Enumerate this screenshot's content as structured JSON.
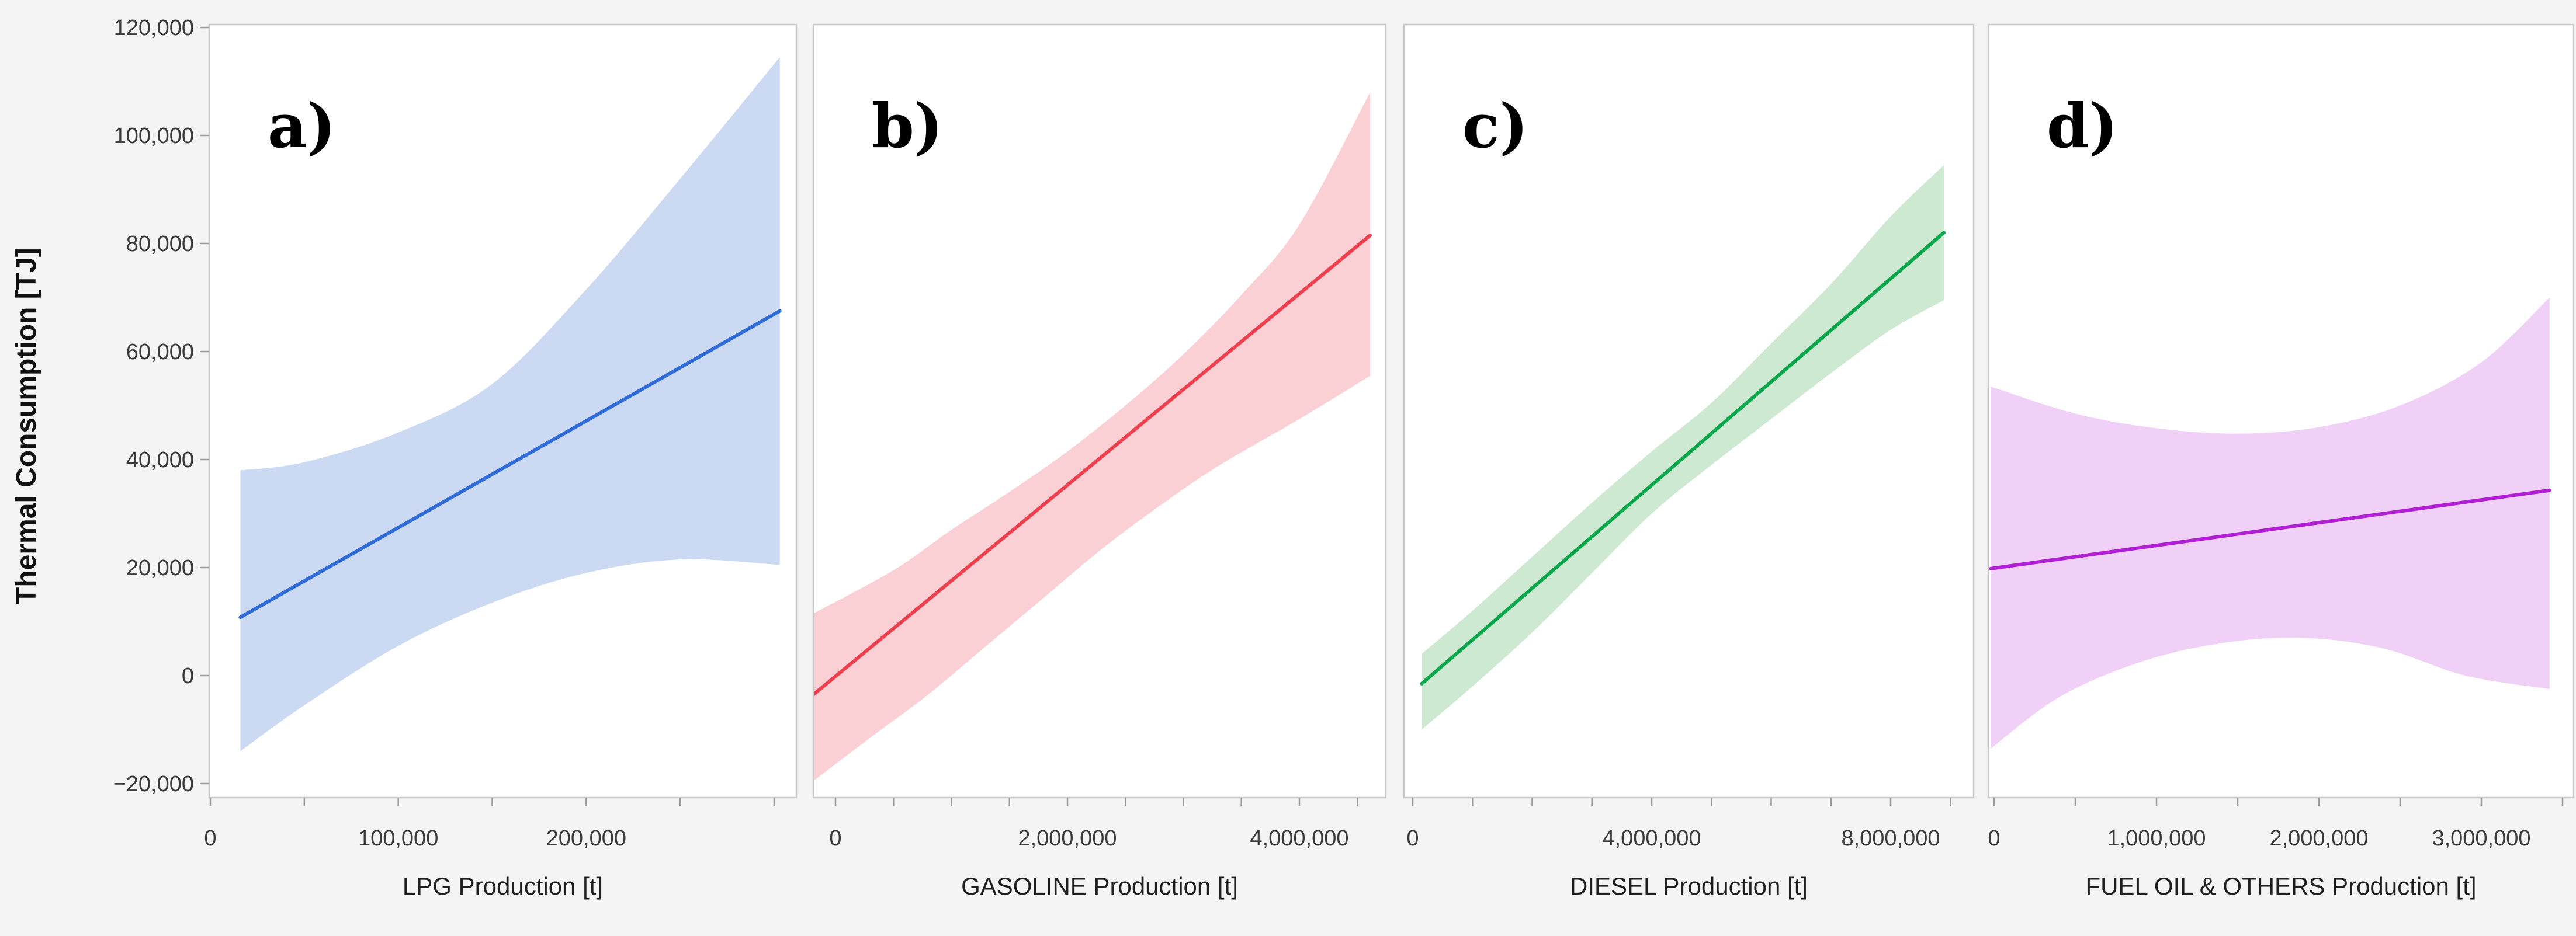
{
  "figure": {
    "y_axis_title": "Thermal Consumption [TJ]",
    "background_color": "#f4f4f4",
    "panel_fill": "#ffffff",
    "frame_color": "#c8c8c8",
    "tick_color": "#9b9b9b",
    "tick_label_color": "#3a3a3a",
    "axis_title_color": "#1f1f1f"
  },
  "y_axis": {
    "title": "Thermal Consumption [TJ]",
    "ticks": [
      {
        "value": 120000,
        "label": "120,000"
      },
      {
        "value": 100000,
        "label": "100,000"
      },
      {
        "value": 80000,
        "label": "80,000"
      },
      {
        "value": 60000,
        "label": "60,000"
      },
      {
        "value": 40000,
        "label": "40,000"
      },
      {
        "value": 20000,
        "label": "20,000"
      },
      {
        "value": 0,
        "label": "0"
      },
      {
        "value": -20000,
        "label": "−20,000"
      }
    ],
    "visible_range": [
      -22600,
      120600
    ],
    "grid": false
  },
  "chart_data": [
    {
      "type": "line",
      "id": "a",
      "letter": "a)",
      "x_title": "LPG Production [t]",
      "line_color": "#2e6bd8",
      "band_color": "#ccd9f3",
      "x_domain": [
        -600,
        312000
      ],
      "x_minor_step": 50000,
      "x_max_tick": 300000,
      "x_tick_labels": [
        {
          "value": 0,
          "label": "0"
        },
        {
          "value": 100000,
          "label": "100,000"
        },
        {
          "value": 200000,
          "label": "200,000"
        }
      ],
      "line": [
        [
          16000,
          10800
        ],
        [
          303000,
          67500
        ]
      ],
      "band_upper": [
        [
          16000,
          38000
        ],
        [
          50000,
          39500
        ],
        [
          100000,
          45000
        ],
        [
          150000,
          54000
        ],
        [
          200000,
          71500
        ],
        [
          250000,
          92000
        ],
        [
          303000,
          114500
        ]
      ],
      "band_lower": [
        [
          16000,
          -14000
        ],
        [
          50000,
          -5500
        ],
        [
          100000,
          5500
        ],
        [
          150000,
          13500
        ],
        [
          200000,
          19000
        ],
        [
          250000,
          21500
        ],
        [
          303000,
          20500
        ]
      ]
    },
    {
      "type": "line",
      "id": "b",
      "letter": "b)",
      "x_title": "GASOLINE Production [t]",
      "line_color": "#ee3f4f",
      "band_color": "#fbd0d4",
      "x_domain": [
        -190000,
        4745000
      ],
      "x_minor_step": 500000,
      "x_max_tick": 4500000,
      "x_tick_labels": [
        {
          "value": 0,
          "label": "0"
        },
        {
          "value": 2000000,
          "label": "2,000,000"
        },
        {
          "value": 4000000,
          "label": "4,000,000"
        }
      ],
      "line": [
        [
          -190000,
          -3500
        ],
        [
          4610000,
          81500
        ]
      ],
      "band_upper": [
        [
          -190000,
          11500
        ],
        [
          500000,
          19500
        ],
        [
          1000000,
          27000
        ],
        [
          1500000,
          34000
        ],
        [
          2000000,
          41500
        ],
        [
          2500000,
          50000
        ],
        [
          3000000,
          59500
        ],
        [
          3500000,
          70500
        ],
        [
          4000000,
          83500
        ],
        [
          4610000,
          108000
        ]
      ],
      "band_lower": [
        [
          -190000,
          -19500
        ],
        [
          300000,
          -11500
        ],
        [
          800000,
          -3500
        ],
        [
          1300000,
          5500
        ],
        [
          1800000,
          14500
        ],
        [
          2300000,
          23500
        ],
        [
          2800000,
          31500
        ],
        [
          3300000,
          38800
        ],
        [
          4000000,
          47500
        ],
        [
          4610000,
          55500
        ]
      ]
    },
    {
      "type": "line",
      "id": "c",
      "letter": "c)",
      "x_title": "DIESEL Production [t]",
      "line_color": "#0aa64a",
      "band_color": "#cde9d2",
      "x_domain": [
        -150000,
        9390000
      ],
      "x_minor_step": 1000000,
      "x_max_tick": 9000000,
      "x_tick_labels": [
        {
          "value": 0,
          "label": "0"
        },
        {
          "value": 4000000,
          "label": "4,000,000"
        },
        {
          "value": 8000000,
          "label": "8,000,000"
        }
      ],
      "line": [
        [
          150000,
          -1500
        ],
        [
          8890000,
          82000
        ]
      ],
      "band_upper": [
        [
          150000,
          4000
        ],
        [
          1000000,
          12000
        ],
        [
          2000000,
          22000
        ],
        [
          3000000,
          32000
        ],
        [
          4000000,
          41500
        ],
        [
          5000000,
          50500
        ],
        [
          6000000,
          61500
        ],
        [
          7000000,
          72500
        ],
        [
          8000000,
          85000
        ],
        [
          8890000,
          94500
        ]
      ],
      "band_lower": [
        [
          150000,
          -10000
        ],
        [
          1000000,
          -2000
        ],
        [
          2000000,
          8000
        ],
        [
          3000000,
          19000
        ],
        [
          4000000,
          30000
        ],
        [
          5000000,
          39000
        ],
        [
          6000000,
          47500
        ],
        [
          7000000,
          56000
        ],
        [
          8000000,
          64000
        ],
        [
          8890000,
          69500
        ]
      ]
    },
    {
      "type": "line",
      "id": "d",
      "letter": "d)",
      "x_title": "FUEL OIL & OTHERS Production [t]",
      "line_color": "#b01fd4",
      "band_color": "#f0d0f7",
      "x_domain": [
        -36000,
        3570000
      ],
      "x_minor_step": 500000,
      "x_max_tick": 3500000,
      "x_tick_labels": [
        {
          "value": 0,
          "label": "0"
        },
        {
          "value": 1000000,
          "label": "1,000,000"
        },
        {
          "value": 2000000,
          "label": "2,000,000"
        },
        {
          "value": 3000000,
          "label": "3,000,000"
        }
      ],
      "line": [
        [
          -20000,
          19800
        ],
        [
          3420000,
          34300
        ]
      ],
      "band_upper": [
        [
          -20000,
          53500
        ],
        [
          500000,
          48500
        ],
        [
          1000000,
          45800
        ],
        [
          1500000,
          44800
        ],
        [
          2000000,
          46000
        ],
        [
          2500000,
          50000
        ],
        [
          3000000,
          58000
        ],
        [
          3420000,
          70000
        ]
      ],
      "band_lower": [
        [
          -20000,
          -13500
        ],
        [
          400000,
          -4000
        ],
        [
          900000,
          2500
        ],
        [
          1400000,
          6000
        ],
        [
          1900000,
          7000
        ],
        [
          2400000,
          5000
        ],
        [
          2900000,
          0
        ],
        [
          3420000,
          -2500
        ]
      ]
    }
  ]
}
